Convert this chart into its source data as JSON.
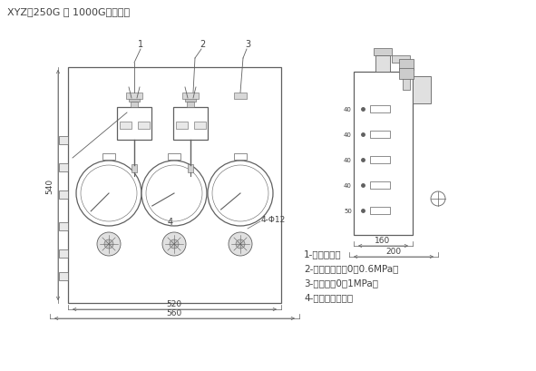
{
  "title": "XYZ－250G ～ 1000G型稀油站",
  "bg_color": "#ffffff",
  "line_color": "#606060",
  "text_color": "#404040",
  "legend_items": [
    "1-仪表盘本体",
    "2-压力控制器（0～0.6MPa）",
    "3-压力表（0～1MPa）",
    "4-双针双管差压表"
  ],
  "dim_520": "520",
  "dim_560": "560",
  "dim_160": "160",
  "dim_200": "200",
  "dim_540": "540",
  "label_4phi": "4-Φ12"
}
